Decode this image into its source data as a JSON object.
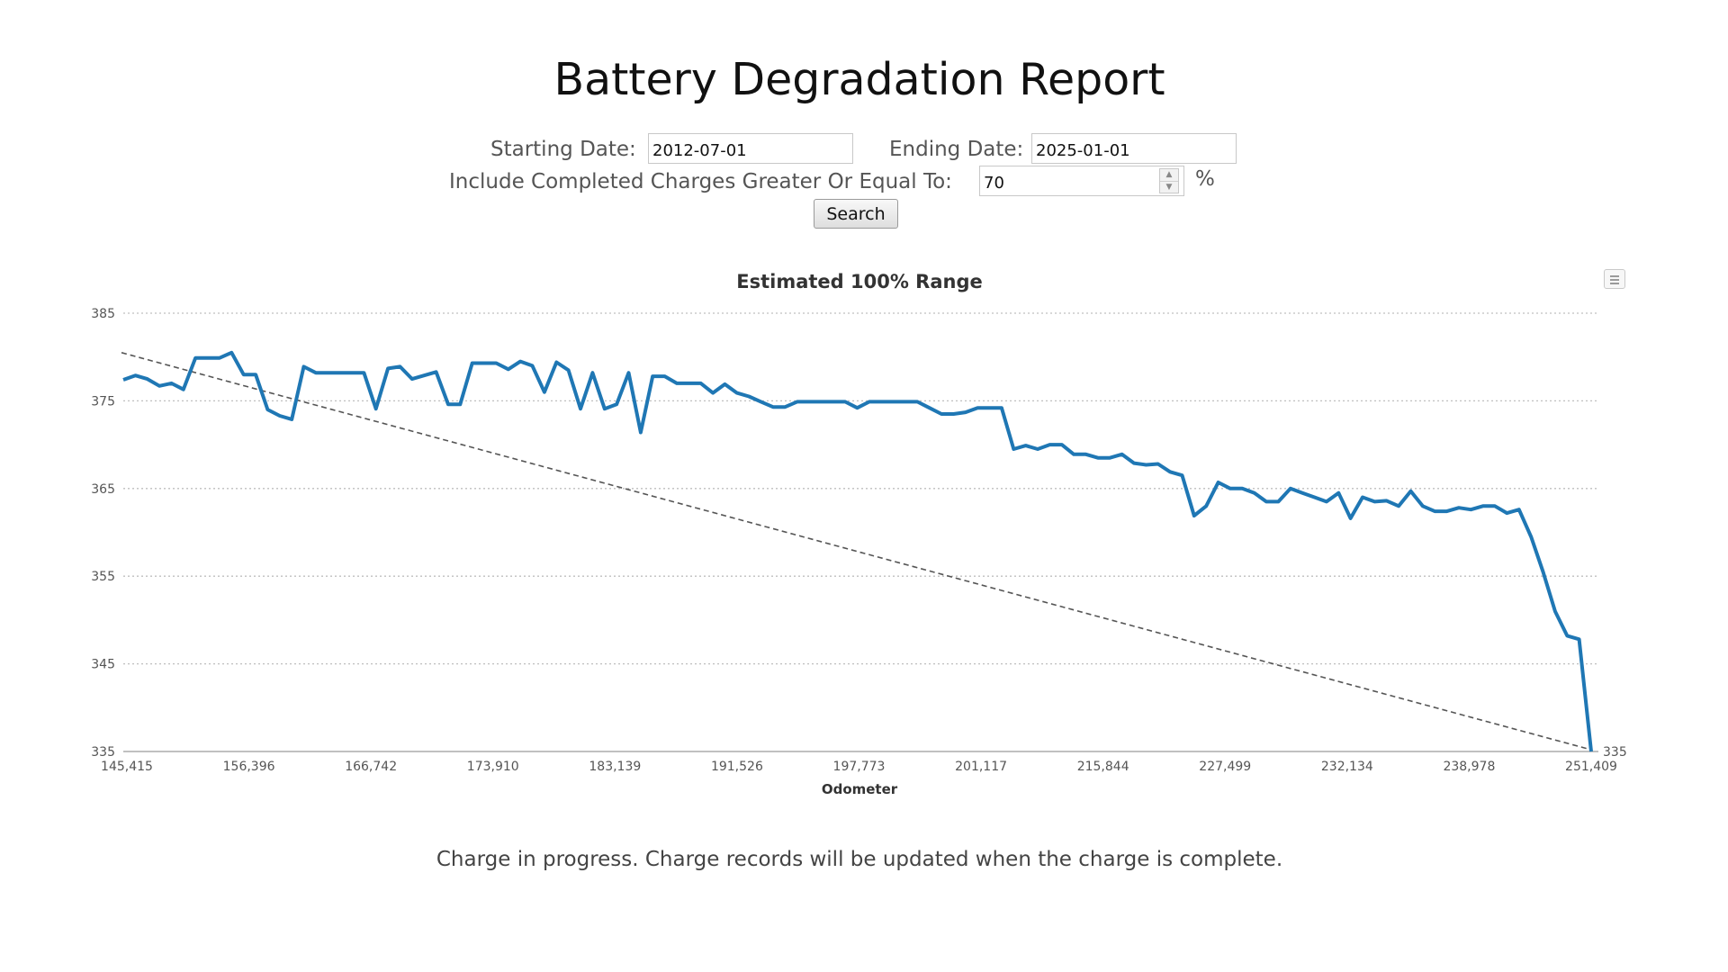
{
  "header": {
    "title": "Battery Degradation Report"
  },
  "form": {
    "start_label": "Starting Date:",
    "start_value": "2012-07-01",
    "end_label": "Ending Date:",
    "end_value": "2025-01-01",
    "threshold_label": "Include Completed Charges Greater Or Equal To:",
    "threshold_value": "70",
    "percent_symbol": "%",
    "search_label": "Search"
  },
  "footer": {
    "message": "Charge in progress. Charge records will be updated when the charge is complete."
  },
  "colors": {
    "series": "#1f77b4",
    "trend": "#555555",
    "grid": "#bfbfbf"
  },
  "icons": {
    "chart_menu": "menu-icon",
    "spinner_up": "chevron-up-icon",
    "spinner_down": "chevron-down-icon"
  },
  "chart_data": {
    "type": "line",
    "title": "Estimated 100% Range",
    "xlabel": "Odometer",
    "ylabel": "",
    "ylim": [
      335,
      385
    ],
    "yticks": [
      335,
      345,
      355,
      365,
      375,
      385
    ],
    "right_axis_label": "335",
    "grid": true,
    "legend": "none",
    "x_tick_labels": [
      "145,415",
      "156,396",
      "166,742",
      "173,910",
      "183,139",
      "191,526",
      "197,773",
      "201,117",
      "215,844",
      "227,499",
      "232,134",
      "238,978",
      "251,409"
    ],
    "series": [
      {
        "values": [
          377.4,
          377.9,
          377.5,
          376.7,
          377.0,
          376.3,
          379.9,
          379.9,
          379.9,
          380.5,
          378.0,
          378.0,
          374.0,
          373.3,
          372.9,
          378.9,
          378.2,
          378.2,
          378.2,
          378.2,
          378.2,
          374.1,
          378.7,
          378.9,
          377.5,
          377.9,
          378.3,
          374.6,
          374.6,
          379.3,
          379.3,
          379.3,
          378.6,
          379.5,
          379.0,
          376.0,
          379.4,
          378.5,
          374.1,
          378.2,
          374.1,
          374.6,
          378.2,
          371.4,
          377.8,
          377.8,
          377.0,
          377.0,
          377.0,
          375.9,
          376.9,
          375.9,
          375.5,
          374.9,
          374.3,
          374.3,
          374.9,
          374.9,
          374.9,
          374.9,
          374.9,
          374.2,
          374.9,
          374.9,
          374.9,
          374.9,
          374.9,
          374.2,
          373.5,
          373.5,
          373.7,
          374.2,
          374.2,
          374.2,
          369.5,
          369.9,
          369.5,
          370.0,
          370.0,
          368.9,
          368.9,
          368.5,
          368.5,
          368.9,
          367.9,
          367.7,
          367.8,
          366.9,
          366.5,
          361.9,
          363.0,
          365.7,
          365.0,
          365.0,
          364.5,
          363.5,
          363.5,
          365.0,
          364.5,
          364.0,
          363.5,
          364.5,
          361.6,
          364.0,
          363.5,
          363.6,
          363.0,
          364.7,
          363.0,
          362.4,
          362.4,
          362.8,
          362.6,
          363.0,
          363.0,
          362.2,
          362.6,
          359.5,
          355.5,
          351.0,
          348.2,
          347.8,
          335.0
        ]
      }
    ],
    "trendline": {
      "start": 380.5,
      "end": 335.2
    }
  }
}
